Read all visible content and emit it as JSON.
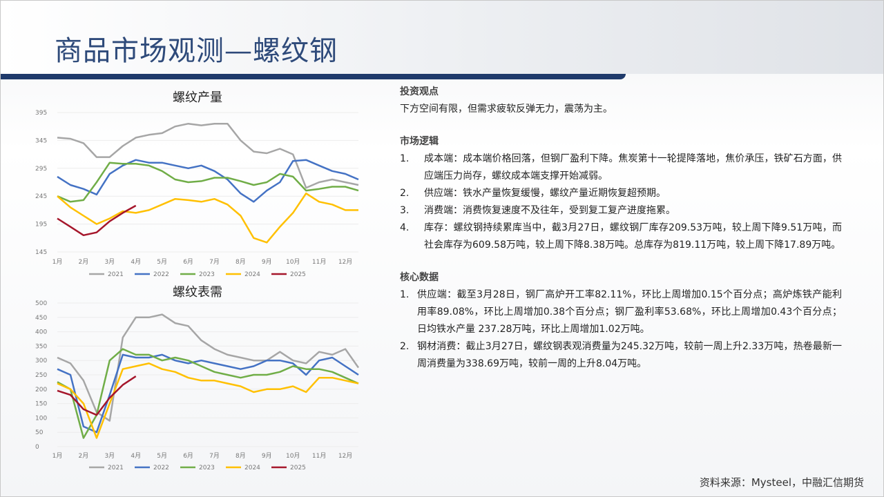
{
  "header": {
    "title": "商品市场观测—螺纹钢"
  },
  "chart_data": [
    {
      "type": "line",
      "title": "螺纹产量",
      "categories": [
        "1月",
        null,
        "2月",
        null,
        "3月",
        null,
        "4月",
        null,
        "5月",
        null,
        "6月",
        null,
        "7月",
        null,
        "8月",
        null,
        "9月",
        null,
        "10月",
        null,
        "11月",
        null,
        "12月",
        null
      ],
      "ylim": [
        145,
        395
      ],
      "yticks": [
        145,
        195,
        245,
        295,
        345,
        395
      ],
      "grid": true,
      "series": [
        {
          "name": "2021",
          "color": "#a6a6a6",
          "values": [
            350,
            348,
            340,
            315,
            315,
            335,
            350,
            355,
            358,
            370,
            375,
            372,
            375,
            375,
            345,
            325,
            322,
            330,
            320,
            260,
            270,
            275,
            270,
            265
          ]
        },
        {
          "name": "2022",
          "color": "#4472c4",
          "values": [
            280,
            265,
            258,
            248,
            285,
            300,
            310,
            305,
            305,
            300,
            295,
            300,
            290,
            275,
            250,
            235,
            255,
            270,
            308,
            310,
            300,
            290,
            285,
            275
          ]
        },
        {
          "name": "2023",
          "color": "#70ad47",
          "values": [
            245,
            235,
            238,
            270,
            305,
            303,
            303,
            300,
            290,
            275,
            270,
            272,
            278,
            278,
            272,
            265,
            270,
            285,
            280,
            255,
            258,
            262,
            262,
            255
          ]
        },
        {
          "name": "2024",
          "color": "#ffc000",
          "values": [
            245,
            225,
            210,
            195,
            205,
            218,
            215,
            220,
            230,
            240,
            238,
            235,
            240,
            230,
            210,
            170,
            162,
            190,
            215,
            250,
            235,
            230,
            220,
            220
          ]
        },
        {
          "name": "2025",
          "color": "#a5162b",
          "values": [
            205,
            190,
            175,
            180,
            200,
            215,
            228,
            null,
            null,
            null,
            null,
            null,
            null,
            null,
            null,
            null,
            null,
            null,
            null,
            null,
            null,
            null,
            null,
            null
          ]
        }
      ]
    },
    {
      "type": "line",
      "title": "螺纹表需",
      "categories": [
        "1月",
        null,
        "2月",
        null,
        "3月",
        null,
        "4月",
        null,
        "5月",
        null,
        "6月",
        null,
        "7月",
        null,
        "8月",
        null,
        "9月",
        null,
        "10月",
        null,
        "11月",
        null,
        "12月",
        null
      ],
      "ylim": [
        0,
        500
      ],
      "yticks": [
        0,
        50,
        100,
        150,
        200,
        250,
        300,
        350,
        400,
        450,
        500
      ],
      "grid": true,
      "series": [
        {
          "name": "2021",
          "color": "#a6a6a6",
          "values": [
            310,
            290,
            230,
            120,
            90,
            380,
            450,
            450,
            460,
            430,
            420,
            370,
            340,
            320,
            310,
            300,
            300,
            330,
            300,
            290,
            330,
            320,
            340,
            275
          ]
        },
        {
          "name": "2022",
          "color": "#4472c4",
          "values": [
            270,
            250,
            70,
            50,
            180,
            320,
            310,
            310,
            320,
            300,
            290,
            300,
            290,
            280,
            270,
            280,
            300,
            300,
            290,
            250,
            300,
            310,
            280,
            250
          ]
        },
        {
          "name": "2023",
          "color": "#70ad47",
          "values": [
            225,
            200,
            30,
            110,
            300,
            340,
            320,
            320,
            300,
            310,
            300,
            280,
            260,
            250,
            240,
            250,
            250,
            260,
            280,
            270,
            270,
            260,
            240,
            220
          ]
        },
        {
          "name": "2024",
          "color": "#ffc000",
          "values": [
            220,
            200,
            150,
            30,
            150,
            270,
            280,
            290,
            270,
            260,
            240,
            230,
            230,
            220,
            210,
            190,
            200,
            200,
            210,
            190,
            240,
            240,
            230,
            220
          ]
        },
        {
          "name": "2025",
          "color": "#a5162b",
          "values": [
            195,
            180,
            130,
            110,
            170,
            215,
            245,
            null,
            null,
            null,
            null,
            null,
            null,
            null,
            null,
            null,
            null,
            null,
            null,
            null,
            null,
            null,
            null,
            null
          ]
        }
      ]
    }
  ],
  "sections": [
    {
      "heading": "投资观点",
      "paragraphs": [
        "下方空间有限，但需求疲软反弹无力，震荡为主。"
      ]
    },
    {
      "heading": "市场逻辑",
      "items": [
        {
          "num": "1.",
          "text": "成本端：成本端价格回落，但钢厂盈利下降。焦炭第十一轮提降落地，焦价承压，铁矿石方面，供应端压力尚存，螺纹成本端支撑开始减弱。"
        },
        {
          "num": "2.",
          "text": "供应端：铁水产量恢复缓慢，螺纹产量近期恢复超预期。"
        },
        {
          "num": "3.",
          "text": "消费端：消费恢复速度不及往年，受到复工复产进度拖累。"
        },
        {
          "num": "4.",
          "text": "库存：螺纹钢持续累库当中，截3月27日，螺纹钢厂库存209.53万吨，较上周下降9.51万吨，而社会库存为609.58万吨，较上周下降8.38万吨。总库存为819.11万吨，较上周下降17.89万吨。"
        }
      ]
    },
    {
      "heading": "核心数据",
      "items": [
        {
          "num": "1.",
          "text": "供应端：截至3月28日，钢厂高炉开工率82.11%，环比上周增加0.15个百分点；高炉炼铁产能利用率89.08%，环比上周增加0.38个百分点；钢厂盈利率53.68%，环比上周增加0.43个百分点；日均铁水产量 237.28万吨，环比上周增加1.02万吨。"
        },
        {
          "num": "2.",
          "text": "钢材消费：截止3月27日，螺纹钢表观消费量为245.32万吨，较前一周上升2.33万吨，热卷最新一周消费量为338.69万吨，较前一周的上升8.04万吨。"
        }
      ]
    }
  ],
  "source": "资料来源：Mysteel，中融汇信期货"
}
